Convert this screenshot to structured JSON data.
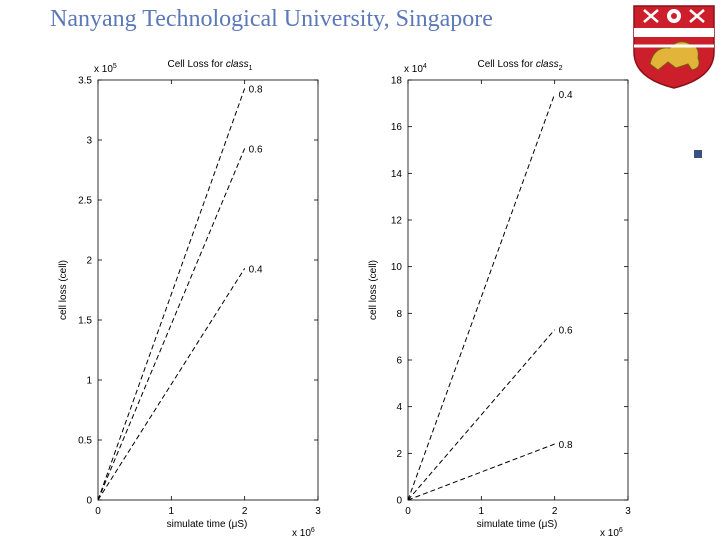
{
  "header": {
    "title": "Nanyang Technological University, Singapore"
  },
  "crest": {
    "name": "ntu-crest",
    "colors": {
      "red": "#cc1f2b",
      "gold": "#e2b53a",
      "white": "#ffffff"
    }
  },
  "bullet": {
    "icon": "square-bullet-icon",
    "color": "#3a4f86"
  },
  "chart_data": [
    {
      "type": "line",
      "title_prefix": "Cell Loss for ",
      "title_italic": "class",
      "title_sub": "1",
      "xlabel": "simulate time (μS)",
      "ylabel": "cell loss (cell)",
      "x_multiplier": "x 10",
      "x_multiplier_exp": "6",
      "y_multiplier": "x 10",
      "y_multiplier_exp": "5",
      "xlim": [
        0,
        3
      ],
      "ylim": [
        0,
        3.5
      ],
      "x_ticks": [
        0,
        1,
        2,
        3
      ],
      "y_ticks": [
        0,
        0.5,
        1,
        1.5,
        2,
        2.5,
        3,
        3.5
      ],
      "grid": false,
      "series": [
        {
          "name": "0.8",
          "x": [
            0,
            2
          ],
          "y": [
            0,
            3.43
          ],
          "style": "dashed"
        },
        {
          "name": "0.6",
          "x": [
            0,
            2
          ],
          "y": [
            0,
            2.93
          ],
          "style": "dashed"
        },
        {
          "name": "0.4",
          "x": [
            0,
            2
          ],
          "y": [
            0,
            1.93
          ],
          "style": "dashed"
        }
      ]
    },
    {
      "type": "line",
      "title_prefix": "Cell Loss for ",
      "title_italic": "class",
      "title_sub": "2",
      "xlabel": "simulate time (μS)",
      "ylabel": "cell loss (cell)",
      "x_multiplier": "x 10",
      "x_multiplier_exp": "6",
      "y_multiplier": "x 10",
      "y_multiplier_exp": "4",
      "xlim": [
        0,
        3
      ],
      "ylim": [
        0,
        18
      ],
      "x_ticks": [
        0,
        1,
        2,
        3
      ],
      "y_ticks": [
        0,
        2,
        4,
        6,
        8,
        10,
        12,
        14,
        16,
        18
      ],
      "grid": false,
      "series": [
        {
          "name": "0.4",
          "x": [
            0,
            2
          ],
          "y": [
            0,
            17.4
          ],
          "style": "dashed"
        },
        {
          "name": "0.6",
          "x": [
            0,
            2
          ],
          "y": [
            0,
            7.3
          ],
          "style": "dashed"
        },
        {
          "name": "0.8",
          "x": [
            0,
            2
          ],
          "y": [
            0,
            2.4
          ],
          "style": "dashed"
        }
      ]
    }
  ]
}
